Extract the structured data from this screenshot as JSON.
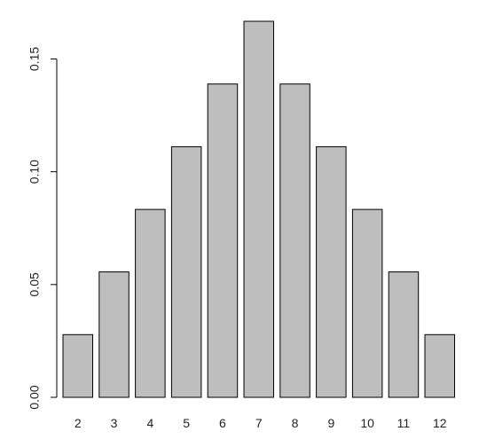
{
  "chart_data": {
    "type": "bar",
    "title": "",
    "xlabel": "",
    "ylabel": "",
    "categories": [
      "2",
      "3",
      "4",
      "5",
      "6",
      "7",
      "8",
      "9",
      "10",
      "11",
      "12"
    ],
    "values": [
      0.0278,
      0.0556,
      0.0833,
      0.1111,
      0.1389,
      0.1667,
      0.1389,
      0.1111,
      0.0833,
      0.0556,
      0.0278
    ],
    "ylim": [
      0,
      0.17
    ],
    "yticks": [
      {
        "value": 0.0,
        "label": "0.00"
      },
      {
        "value": 0.05,
        "label": "0.05"
      },
      {
        "value": 0.1,
        "label": "0.10"
      },
      {
        "value": 0.15,
        "label": "0.15"
      }
    ],
    "grid": false,
    "colors": {
      "bar_fill": "#bebebe",
      "bar_stroke": "#000000",
      "axis": "#000000"
    }
  }
}
